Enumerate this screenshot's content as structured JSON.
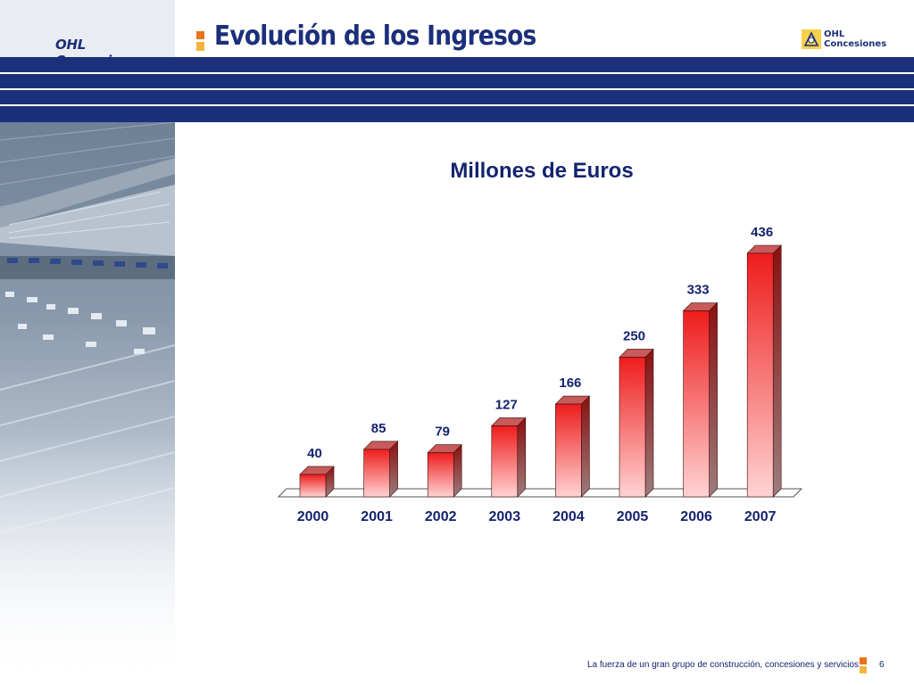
{
  "header": {
    "brand": "OHL Concesiones",
    "title": "Evolución de los Ingresos",
    "logo_line1": "OHL",
    "logo_line2": "Concesiones"
  },
  "colors": {
    "navy": "#1b2f7a",
    "bar_top": "#ee1c1c",
    "bar_bottom": "#ffd3d3",
    "bullet_orange": "#e8731a",
    "bullet_yellow": "#f6b33b"
  },
  "chart_data": {
    "type": "bar",
    "title": "Millones de Euros",
    "categories": [
      "2000",
      "2001",
      "2002",
      "2003",
      "2004",
      "2005",
      "2006",
      "2007"
    ],
    "values": [
      40,
      85,
      79,
      127,
      166,
      250,
      333,
      436
    ],
    "xlabel": "",
    "ylabel": "",
    "ylim": [
      0,
      436
    ],
    "grid": false,
    "legend": "none",
    "data_labels": true
  },
  "footer": {
    "tagline": "La fuerza de un gran grupo de construcción, concesiones y servicios",
    "page_number": "6"
  }
}
